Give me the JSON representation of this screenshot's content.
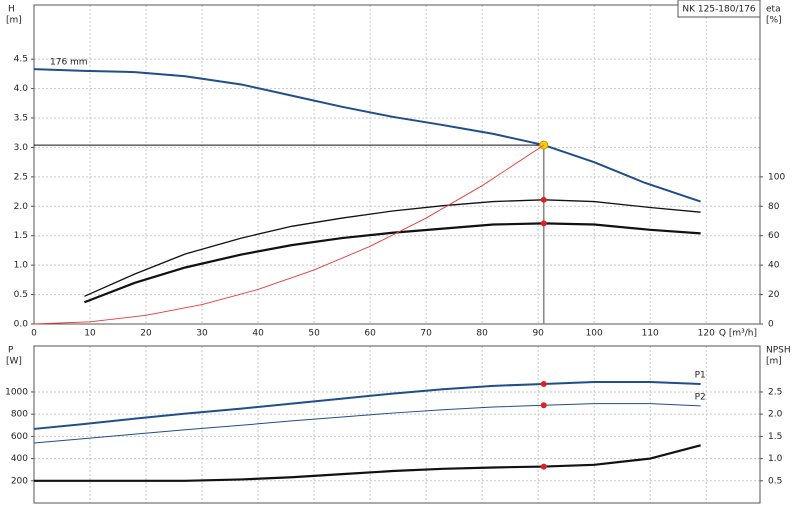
{
  "chart_data": [
    {
      "type": "line",
      "title": "NK 125-180/176",
      "ylabel": "H",
      "yunit": "[m]",
      "y2label": "eta",
      "y2unit": "[%]",
      "xlabel": "Q [m³/h]",
      "xlim": [
        0,
        129.6
      ],
      "ylim": [
        0,
        5.42
      ],
      "y2lim": [
        0,
        216.8
      ],
      "xticks": [
        0,
        10,
        20,
        30,
        40,
        50,
        60,
        70,
        80,
        90,
        100,
        110,
        120
      ],
      "yticks": [
        {
          "value": 0,
          "label": "0.0"
        },
        0.5,
        {
          "value": 1,
          "label": "1.0"
        },
        1.5,
        {
          "value": 2,
          "label": "2.0"
        },
        2.5,
        {
          "value": 3,
          "label": "3.0"
        },
        3.5,
        {
          "value": 4,
          "label": "4.0"
        },
        4.5
      ],
      "y2ticks": [
        0,
        20,
        40,
        60,
        80,
        100
      ],
      "show_xtick_labels": true,
      "grid": true,
      "marker_x": 91,
      "series": [
        {
          "name": "176 mm",
          "label_at": "start",
          "color": "#1f4e8c",
          "width": 2,
          "marker_color": "#f5d000",
          "crosshair": true,
          "x": [
            0,
            9,
            18,
            27,
            37,
            46,
            55,
            64,
            73,
            82,
            91,
            100,
            109,
            119
          ],
          "values": [
            4.33,
            4.3,
            4.28,
            4.21,
            4.07,
            3.88,
            3.69,
            3.52,
            3.38,
            3.23,
            3.04,
            2.75,
            2.4,
            2.08
          ]
        },
        {
          "color": "#111111",
          "width": 1.3,
          "axis": "y2",
          "marker_color": "#e02020",
          "x": [
            9,
            18,
            27,
            37,
            46,
            55,
            64,
            73,
            82,
            91,
            100,
            110,
            119
          ],
          "values": [
            18.8,
            34,
            47.6,
            58.4,
            66.4,
            72,
            76.8,
            80.4,
            83.2,
            84.4,
            83.2,
            79.2,
            76
          ]
        },
        {
          "color": "#111111",
          "width": 2.2,
          "axis": "y2",
          "marker_color": "#e02020",
          "x": [
            9,
            18,
            27,
            37,
            46,
            55,
            64,
            73,
            82,
            91,
            100,
            110,
            119
          ],
          "values": [
            14.8,
            28,
            38.4,
            47.2,
            53.6,
            58.4,
            62,
            64.8,
            67.6,
            68.4,
            67.6,
            64,
            61.6
          ]
        },
        {
          "color": "#e83a3a",
          "width": 0.9,
          "x": [
            0,
            10,
            20,
            30,
            40,
            50,
            60,
            70,
            80,
            91
          ],
          "values": [
            0,
            0.037,
            0.147,
            0.33,
            0.587,
            0.918,
            1.32,
            1.8,
            2.35,
            3.04
          ]
        }
      ]
    },
    {
      "type": "line",
      "ylabel": "P",
      "yunit": "[W]",
      "y2label": "NPSH",
      "y2unit": "[m]",
      "xlim": [
        0,
        129.6
      ],
      "ylim": [
        0,
        1414
      ],
      "y2lim": [
        0,
        3.535
      ],
      "xticks": [
        0,
        10,
        20,
        30,
        40,
        50,
        60,
        70,
        80,
        90,
        100,
        110,
        120
      ],
      "yticks": [
        200,
        400,
        600,
        800,
        1000
      ],
      "y2ticks": [
        0.5,
        {
          "value": 1,
          "label": "1.0"
        },
        1.5,
        {
          "value": 2,
          "label": "2.0"
        },
        2.5
      ],
      "show_xtick_labels": false,
      "grid": true,
      "marker_x": 91,
      "series": [
        {
          "name": "P1",
          "label_at": "end",
          "color": "#1f4e8c",
          "width": 2,
          "marker_color": "#e02020",
          "x": [
            0,
            9,
            18,
            27,
            37,
            46,
            55,
            64,
            73,
            82,
            91,
            100,
            110,
            119
          ],
          "values": [
            667,
            712,
            760,
            805,
            850,
            895,
            940,
            985,
            1025,
            1055,
            1072,
            1090,
            1090,
            1072
          ]
        },
        {
          "name": "P2",
          "label_at": "end",
          "color": "#1f4e8c",
          "width": 1,
          "marker_color": "#e02020",
          "x": [
            0,
            9,
            18,
            27,
            37,
            46,
            55,
            64,
            73,
            82,
            91,
            100,
            110,
            119
          ],
          "values": [
            540,
            580,
            620,
            660,
            700,
            740,
            775,
            810,
            840,
            865,
            880,
            895,
            895,
            875
          ]
        },
        {
          "color": "#111111",
          "width": 2.2,
          "axis": "y2",
          "marker_color": "#e02020",
          "x": [
            0,
            9,
            18,
            27,
            37,
            46,
            55,
            64,
            73,
            82,
            91,
            100,
            110,
            119
          ],
          "values": [
            0.5,
            0.5,
            0.5,
            0.5,
            0.53,
            0.58,
            0.65,
            0.72,
            0.77,
            0.8,
            0.82,
            0.86,
            1.0,
            1.3
          ]
        }
      ]
    }
  ]
}
